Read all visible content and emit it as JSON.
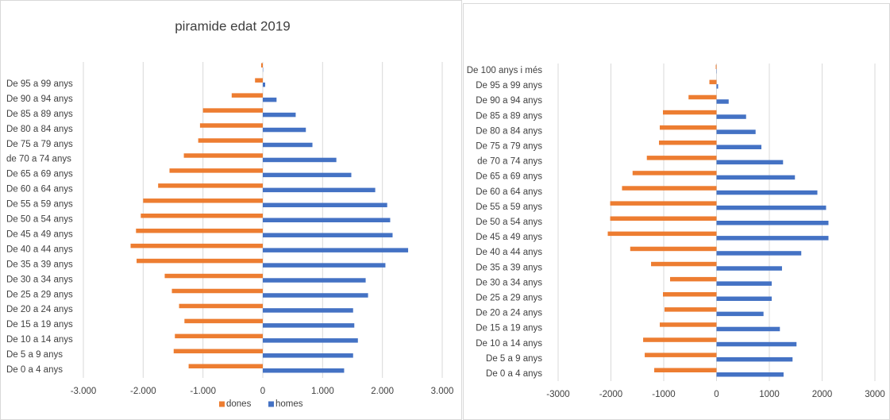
{
  "chart_data": [
    {
      "type": "bar",
      "orientation": "horizontal",
      "title": "piramide edat 2019",
      "categories": [
        "De 0 a 4 anys",
        "De 5 a 9 anys",
        "De 10 a 14 anys",
        "De 15 a 19 anys",
        "De 20 a 24 anys",
        "De 25 a 29 anys",
        "De 30 a 34 anys",
        "De 35 a 39 anys",
        "De 40 a 44 anys",
        "De 45 a 49 anys",
        "De 50 a 54 anys",
        "De 55 a 59 anys",
        "De 60 a 64 anys",
        "De 65 a 69 anys",
        "de 70 a 74 anys",
        "De 75 a 79 anys",
        "De 80 a 84 anys",
        "De 85 a 89 anys",
        "De 90 a 94 anys",
        "De 95 a 99 anys",
        null
      ],
      "series": [
        {
          "name": "dones",
          "color": "#ed7d31",
          "values": [
            -1240,
            -1490,
            -1470,
            -1310,
            -1400,
            -1520,
            -1640,
            -2110,
            -2210,
            -2120,
            -2040,
            -2000,
            -1750,
            -1560,
            -1320,
            -1080,
            -1050,
            -1000,
            -520,
            -130,
            -27
          ]
        },
        {
          "name": "homes",
          "color": "#4472c4",
          "values": [
            1360,
            1510,
            1590,
            1530,
            1510,
            1760,
            1720,
            2050,
            2430,
            2170,
            2130,
            2080,
            1880,
            1480,
            1230,
            830,
            720,
            550,
            230,
            40,
            5
          ]
        }
      ],
      "xlim": [
        -3000,
        3000
      ],
      "xticks": [
        {
          "value": -3000,
          "label": "-3.000"
        },
        {
          "value": -2000,
          "label": "-2.000"
        },
        {
          "value": -1000,
          "label": "-1.000"
        },
        0,
        {
          "value": 1000,
          "label": "1.000"
        },
        {
          "value": 2000,
          "label": "2.000"
        },
        {
          "value": 3000,
          "label": "3.000"
        }
      ],
      "grid": true,
      "legend": "bottom"
    },
    {
      "type": "bar",
      "orientation": "horizontal",
      "categories": [
        "De 0 a 4 anys",
        "De 5 a 9 anys",
        "De 10 a 14 anys",
        "De 15 a 19 anys",
        "De 20 a 24 anys",
        "De 25 a 29 anys",
        "De 30 a 34 anys",
        "De 35 a 39 anys",
        "De 40 a 44 anys",
        "De 45 a 49 anys",
        "De 50 a 54 anys",
        "De 55 a 59 anys",
        "De 60 a 64 anys",
        "De 65 a 69 anys",
        "de 70 a 74 anys",
        "De 75 a 79 anys",
        "De 80 a 84 anys",
        "De 85 a 89 anys",
        "De 90 a 94 anys",
        "De 95 a 99 anys",
        "De 100 anys i més"
      ],
      "series": [
        {
          "color": "#ed7d31",
          "values": [
            -1180,
            -1360,
            -1390,
            -1075,
            -985,
            -1015,
            -880,
            -1240,
            -1635,
            -2060,
            -2015,
            -2015,
            -1790,
            -1590,
            -1320,
            -1090,
            -1075,
            -1015,
            -530,
            -135,
            -15
          ]
        },
        {
          "color": "#4472c4",
          "values": [
            1270,
            1440,
            1515,
            1200,
            890,
            1045,
            1045,
            1240,
            1605,
            2120,
            2120,
            2075,
            1910,
            1485,
            1260,
            850,
            740,
            560,
            230,
            30,
            5
          ]
        }
      ],
      "xlim": [
        -3000,
        3000
      ],
      "xticks": [
        -3000,
        -2000,
        -1000,
        0,
        1000,
        2000,
        3000
      ],
      "grid": true
    }
  ]
}
